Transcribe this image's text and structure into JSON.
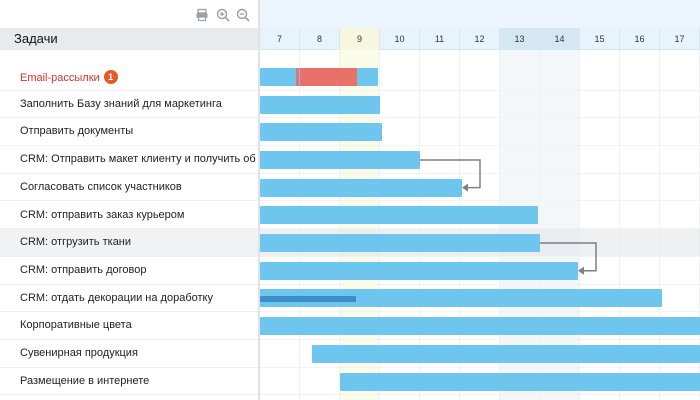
{
  "toolbar": {
    "icons": [
      "printer-icon",
      "zoom-in-icon",
      "zoom-out-icon"
    ]
  },
  "tasks_header": "Задачи",
  "days": [
    "7",
    "8",
    "9",
    "10",
    "11",
    "12",
    "13",
    "14",
    "15",
    "16",
    "17"
  ],
  "today_day": "9",
  "weekend_days": [
    "13",
    "14"
  ],
  "tasks": [
    {
      "name": "Email-рассылки",
      "badge": "1",
      "highlight": true,
      "start": 7,
      "end": 9.95,
      "progress": 0.5,
      "progress_style": "red"
    },
    {
      "name": "Заполнить Базу знаний для маркетинга",
      "start": 7,
      "end": 10
    },
    {
      "name": "Отправить документы",
      "start": 7,
      "end": 10.05
    },
    {
      "name": "CRM: Отправить макет клиенту и получить об",
      "start": 7,
      "end": 11
    },
    {
      "name": "Согласовать список участников",
      "start": 7,
      "end": 12.05
    },
    {
      "name": "CRM: отправить заказ курьером",
      "start": 7,
      "end": 13.95
    },
    {
      "name": "CRM: отгрузить ткани",
      "hover": true,
      "start": 7,
      "end": 14
    },
    {
      "name": "CRM: отправить договор",
      "start": 7,
      "end": 14.95
    },
    {
      "name": "CRM: отдать декорации на доработку",
      "start": 7,
      "end": 17.05,
      "progress": 0.24,
      "progress_style": "dark"
    },
    {
      "name": "Корпоративные цвета",
      "start": 7,
      "end": 18
    },
    {
      "name": "Сувенирная продукция",
      "start": 8.3,
      "end": 18
    },
    {
      "name": "Размещение в интернете",
      "start": 9,
      "end": 18
    }
  ],
  "links": [
    {
      "from": 3,
      "to": 4
    },
    {
      "from": 6,
      "to": 7
    }
  ],
  "colors": {
    "bar": "#6ec6ef",
    "progress_red": "#e8716a",
    "progress_dark": "#3a8fc9",
    "link": "#7a8088",
    "badge": "#e65a26",
    "red_text": "#d9332b"
  }
}
